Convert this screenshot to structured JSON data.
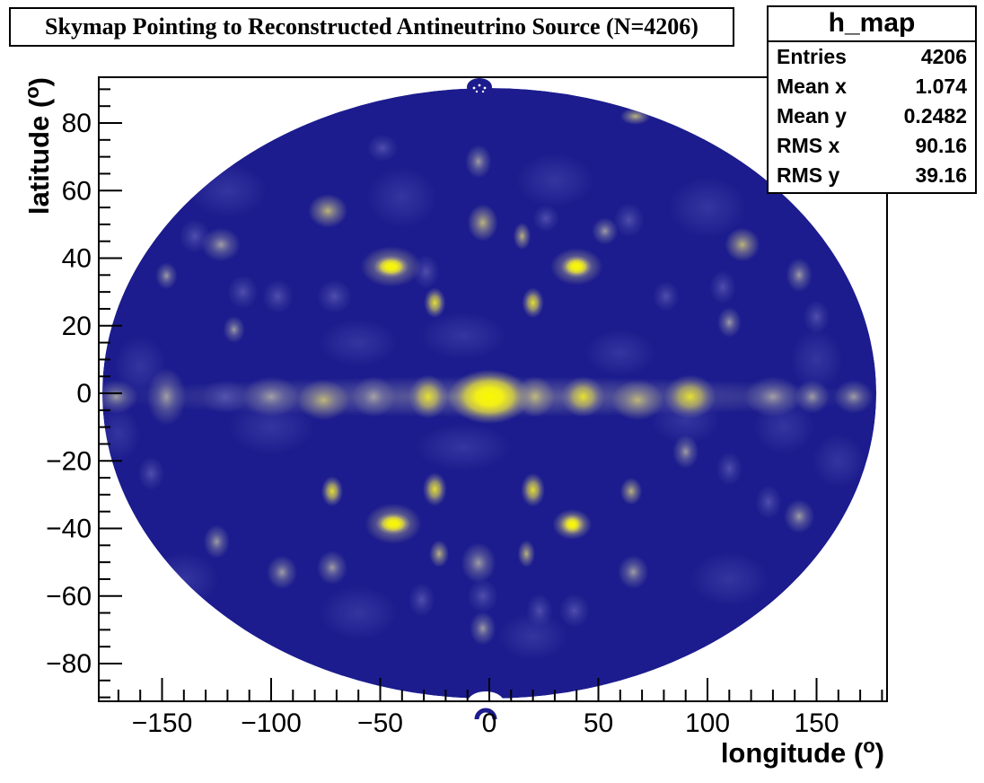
{
  "title": "Skymap Pointing to Reconstructed Antineutrino Source (N=4206)",
  "stats": {
    "name": "h_map",
    "rows": [
      {
        "label": "Entries",
        "value": "4206"
      },
      {
        "label": "Mean x",
        "value": "1.074"
      },
      {
        "label": "Mean y",
        "value": "0.2482"
      },
      {
        "label": "RMS x",
        "value": "90.16"
      },
      {
        "label": "RMS y",
        "value": "39.16"
      }
    ]
  },
  "axes": {
    "x": {
      "title": "longitude",
      "unit_superscript": "o",
      "ticks": [
        -150,
        -100,
        -50,
        0,
        50,
        100,
        150
      ],
      "minor_step": 10,
      "range": [
        -180,
        180
      ]
    },
    "y": {
      "title": "latitude",
      "unit_superscript": "o",
      "ticks": [
        -80,
        -60,
        -40,
        -20,
        0,
        20,
        40,
        60,
        80
      ],
      "minor_step": 5,
      "range": [
        -90,
        90
      ]
    }
  },
  "chart_data": {
    "type": "heatmap",
    "projection": "aitoff-skymap-ellipse",
    "title": "Skymap Pointing to Reconstructed Antineutrino Source (N=4206)",
    "xlabel": "longitude (deg)",
    "ylabel": "latitude (deg)",
    "xlim": [
      -180,
      180
    ],
    "ylim": [
      -90,
      90
    ],
    "entries": 4206,
    "mean_x": 1.074,
    "mean_y": 0.2482,
    "rms_x": 90.16,
    "rms_y": 39.16,
    "legend_position": "none (no color bar shown)",
    "grid": false,
    "palette": {
      "background_min": "#1c1c8e",
      "slate2": "#4a4aae",
      "slate": "#5e5eb4",
      "band": "#a9a5a0",
      "gray": "#b2aea6",
      "khaki": "#c9c178",
      "yellow": "#eeea2a",
      "bright": "#f8f803"
    },
    "hotspots": [
      {
        "lon": 0,
        "lat": -1,
        "rlon": 178,
        "rlat": 6,
        "level": "band"
      },
      {
        "lon": -171,
        "lat": -1,
        "rlon": 10,
        "rlat": 5,
        "level": "gray"
      },
      {
        "lon": -148,
        "lat": -1,
        "rlon": 9,
        "rlat": 8.5,
        "level": "gray"
      },
      {
        "lon": -121,
        "lat": -1,
        "rlon": 11,
        "rlat": 5,
        "level": "slate"
      },
      {
        "lon": -100,
        "lat": -1,
        "rlon": 13,
        "rlat": 6,
        "level": "gray"
      },
      {
        "lon": -76,
        "lat": -2,
        "rlon": 12,
        "rlat": 6,
        "level": "khaki"
      },
      {
        "lon": -53,
        "lat": -1,
        "rlon": 10,
        "rlat": 6,
        "level": "gray"
      },
      {
        "lon": -28,
        "lat": -1,
        "rlon": 9,
        "rlat": 6.5,
        "level": "yellow"
      },
      {
        "lon": 0,
        "lat": -1,
        "rlon": 19,
        "rlat": 8,
        "level": "bright"
      },
      {
        "lon": 21,
        "lat": -1,
        "rlon": 9,
        "rlat": 6,
        "level": "khaki"
      },
      {
        "lon": 43,
        "lat": -1,
        "rlon": 10,
        "rlat": 6,
        "level": "yellow"
      },
      {
        "lon": 68,
        "lat": -2,
        "rlon": 12,
        "rlat": 6,
        "level": "khaki"
      },
      {
        "lon": 92,
        "lat": -1,
        "rlon": 12,
        "rlat": 6.5,
        "level": "yellow"
      },
      {
        "lon": 130,
        "lat": -1,
        "rlon": 13,
        "rlat": 6,
        "level": "gray"
      },
      {
        "lon": 148,
        "lat": -1,
        "rlon": 8,
        "rlat": 5,
        "level": "gray"
      },
      {
        "lon": 167,
        "lat": -1,
        "rlon": 9,
        "rlat": 5,
        "level": "gray"
      },
      {
        "lon": -45,
        "lat": 37.5,
        "rlon": 14,
        "rlat": 6,
        "level": "khaki"
      },
      {
        "lon": -45,
        "lat": 37.5,
        "rlon": 8,
        "rlat": 3.2,
        "level": "bright"
      },
      {
        "lon": 40,
        "lat": 37.5,
        "rlon": 12,
        "rlat": 5.5,
        "level": "khaki"
      },
      {
        "lon": 40,
        "lat": 37.5,
        "rlon": 7,
        "rlat": 3.2,
        "level": "bright"
      },
      {
        "lon": -25,
        "lat": 26.8,
        "rlon": 5,
        "rlat": 4.5,
        "level": "yellow"
      },
      {
        "lon": 20,
        "lat": 26.8,
        "rlon": 5,
        "rlat": 4.5,
        "level": "yellow"
      },
      {
        "lon": 15,
        "lat": 46.5,
        "rlon": 4,
        "rlat": 4,
        "level": "khaki"
      },
      {
        "lon": -72,
        "lat": -29,
        "rlon": 5,
        "rlat": 4.5,
        "level": "yellow"
      },
      {
        "lon": -25,
        "lat": -28.4,
        "rlon": 5.5,
        "rlat": 5,
        "level": "yellow"
      },
      {
        "lon": 20,
        "lat": -28.6,
        "rlon": 5.5,
        "rlat": 5,
        "level": "yellow"
      },
      {
        "lon": 65,
        "lat": -29,
        "rlon": 5,
        "rlat": 4,
        "level": "khaki"
      },
      {
        "lon": -44,
        "lat": -38.6,
        "rlon": 13,
        "rlat": 6,
        "level": "khaki"
      },
      {
        "lon": -44,
        "lat": -38.6,
        "rlon": 8,
        "rlat": 3.2,
        "level": "bright"
      },
      {
        "lon": 38,
        "lat": -38.8,
        "rlon": 9,
        "rlat": 4.5,
        "level": "yellow"
      },
      {
        "lon": 38,
        "lat": -38.8,
        "rlon": 5,
        "rlat": 2.8,
        "level": "bright"
      },
      {
        "lon": -23,
        "lat": -47.5,
        "rlon": 4.5,
        "rlat": 4,
        "level": "khaki"
      },
      {
        "lon": 17,
        "lat": -47.5,
        "rlon": 4,
        "rlat": 4,
        "level": "khaki"
      },
      {
        "lon": -74,
        "lat": 54,
        "rlon": 9,
        "rlat": 5,
        "level": "khaki"
      },
      {
        "lon": -3,
        "lat": 50.5,
        "rlon": 7,
        "rlat": 5.5,
        "level": "khaki"
      },
      {
        "lon": 116,
        "lat": 44,
        "rlon": 8,
        "rlat": 5,
        "level": "khaki"
      },
      {
        "lon": 67,
        "lat": 82,
        "rlon": 7,
        "rlat": 2.5,
        "level": "khaki"
      },
      {
        "lon": 53,
        "lat": 48,
        "rlon": 6,
        "rlat": 4,
        "level": "gray"
      },
      {
        "lon": 142,
        "lat": 35,
        "rlon": 6,
        "rlat": 5,
        "level": "gray"
      },
      {
        "lon": -123,
        "lat": 44,
        "rlon": 9,
        "rlat": 5,
        "level": "gray"
      },
      {
        "lon": -148,
        "lat": 34.8,
        "rlon": 5,
        "rlat": 4,
        "level": "gray"
      },
      {
        "lon": -117,
        "lat": 18.9,
        "rlon": 5,
        "rlat": 4,
        "level": "gray"
      },
      {
        "lon": -5,
        "lat": 68.6,
        "rlon": 6,
        "rlat": 5,
        "level": "gray"
      },
      {
        "lon": 110,
        "lat": 21,
        "rlon": 5.5,
        "rlat": 4.5,
        "level": "gray"
      },
      {
        "lon": -135,
        "lat": 46.5,
        "rlon": 7,
        "rlat": 5,
        "level": "slate"
      },
      {
        "lon": -113,
        "lat": 30,
        "rlon": 7,
        "rlat": 5,
        "level": "slate"
      },
      {
        "lon": -97,
        "lat": 28.7,
        "rlon": 7,
        "rlat": 5,
        "level": "slate"
      },
      {
        "lon": -71,
        "lat": 28.7,
        "rlon": 8,
        "rlat": 5,
        "level": "slate"
      },
      {
        "lon": -29,
        "lat": 36,
        "rlon": 6,
        "rlat": 5,
        "level": "slate"
      },
      {
        "lon": -49,
        "lat": 72.6,
        "rlon": 7,
        "rlat": 4,
        "level": "slate"
      },
      {
        "lon": 26,
        "lat": 51.8,
        "rlon": 6,
        "rlat": 4,
        "level": "slate"
      },
      {
        "lon": 64,
        "lat": 51.3,
        "rlon": 7,
        "rlat": 5,
        "level": "slate"
      },
      {
        "lon": 107,
        "lat": 31.4,
        "rlon": 6,
        "rlat": 5,
        "level": "slate"
      },
      {
        "lon": 81,
        "lat": 28.7,
        "rlon": 6,
        "rlat": 4.5,
        "level": "slate"
      },
      {
        "lon": 150,
        "lat": 22.6,
        "rlon": 6,
        "rlat": 5,
        "level": "slate"
      },
      {
        "lon": -125,
        "lat": -43.9,
        "rlon": 6,
        "rlat": 5,
        "level": "gray"
      },
      {
        "lon": -95,
        "lat": -53,
        "rlon": 7,
        "rlat": 5,
        "level": "gray"
      },
      {
        "lon": -72,
        "lat": -51.6,
        "rlon": 7,
        "rlat": 5,
        "level": "gray"
      },
      {
        "lon": 66,
        "lat": -52.9,
        "rlon": 7,
        "rlat": 5,
        "level": "gray"
      },
      {
        "lon": 90,
        "lat": -17.3,
        "rlon": 6,
        "rlat": 5,
        "level": "gray"
      },
      {
        "lon": 142,
        "lat": -36.4,
        "rlon": 7,
        "rlat": 5,
        "level": "gray"
      },
      {
        "lon": -5,
        "lat": -50.2,
        "rlon": 8,
        "rlat": 6,
        "level": "gray"
      },
      {
        "lon": -3,
        "lat": -69.6,
        "rlon": 6,
        "rlat": 5,
        "level": "gray"
      },
      {
        "lon": -155,
        "lat": -23.7,
        "rlon": 6,
        "rlat": 5,
        "level": "slate"
      },
      {
        "lon": 110,
        "lat": -22.3,
        "rlon": 6,
        "rlat": 5,
        "level": "slate"
      },
      {
        "lon": 128,
        "lat": -32.2,
        "rlon": 6,
        "rlat": 5,
        "level": "slate"
      },
      {
        "lon": 39,
        "lat": -64.3,
        "rlon": 7,
        "rlat": 5,
        "level": "slate"
      },
      {
        "lon": -31,
        "lat": -61.1,
        "rlon": 6,
        "rlat": 5,
        "level": "slate"
      },
      {
        "lon": 23,
        "lat": -64.3,
        "rlon": 6,
        "rlat": 5,
        "level": "slate"
      },
      {
        "lon": -3,
        "lat": -60,
        "rlon": 7,
        "rlat": 5,
        "level": "slate"
      },
      {
        "lon": -120,
        "lat": 60,
        "rlon": 18,
        "rlat": 8,
        "level": "slate2"
      },
      {
        "lon": -40,
        "lat": 58,
        "rlon": 16,
        "rlat": 9,
        "level": "slate2"
      },
      {
        "lon": 30,
        "lat": 63,
        "rlon": 18,
        "rlat": 8,
        "level": "slate2"
      },
      {
        "lon": 100,
        "lat": 55,
        "rlon": 18,
        "rlat": 9,
        "level": "slate2"
      },
      {
        "lon": 150,
        "lat": 10,
        "rlon": 12,
        "rlat": 9,
        "level": "slate2"
      },
      {
        "lon": -160,
        "lat": 8,
        "rlon": 12,
        "rlat": 9,
        "level": "slate2"
      },
      {
        "lon": -100,
        "lat": -10,
        "rlon": 20,
        "rlat": 8,
        "level": "slate2"
      },
      {
        "lon": 60,
        "lat": 12,
        "rlon": 16,
        "rlat": 7,
        "level": "slate2"
      },
      {
        "lon": -60,
        "lat": 15,
        "rlon": 18,
        "rlat": 7,
        "level": "slate2"
      },
      {
        "lon": 90,
        "lat": -8,
        "rlon": 16,
        "rlat": 7,
        "level": "slate2"
      },
      {
        "lon": -140,
        "lat": -55,
        "rlon": 16,
        "rlat": 8,
        "level": "slate2"
      },
      {
        "lon": -60,
        "lat": -65,
        "rlon": 18,
        "rlat": 8,
        "level": "slate2"
      },
      {
        "lon": 20,
        "lat": -72,
        "rlon": 16,
        "rlat": 7,
        "level": "slate2"
      },
      {
        "lon": 110,
        "lat": -55,
        "rlon": 18,
        "rlat": 8,
        "level": "slate2"
      },
      {
        "lon": 160,
        "lat": -20,
        "rlon": 12,
        "rlat": 8,
        "level": "slate2"
      },
      {
        "lon": 135,
        "lat": -10,
        "rlon": 14,
        "rlat": 8,
        "level": "slate2"
      },
      {
        "lon": -170,
        "lat": -12,
        "rlon": 10,
        "rlat": 8,
        "level": "slate2"
      },
      {
        "lon": -12,
        "lat": 17,
        "rlon": 20,
        "rlat": 7,
        "level": "slate2"
      },
      {
        "lon": -12,
        "lat": -16,
        "rlon": 22,
        "rlat": 7,
        "level": "slate2"
      }
    ]
  }
}
